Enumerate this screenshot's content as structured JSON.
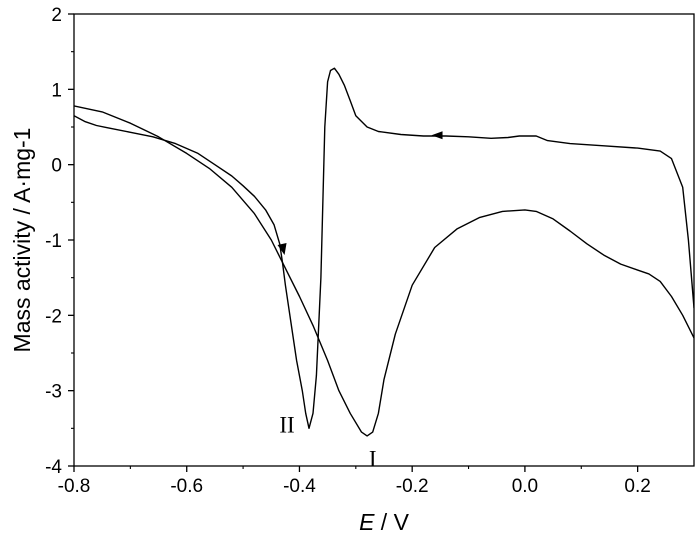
{
  "chart_data": {
    "type": "line",
    "title": "",
    "xlabel_italic": "E",
    "xlabel_unit": " / V",
    "ylabel": "Mass activity / A·mg-1",
    "xlim": [
      -0.8,
      0.3
    ],
    "ylim": [
      -4,
      2
    ],
    "x_ticks": [
      "-0.8",
      "-0.6",
      "-0.4",
      "-0.2",
      "0.0",
      "0.2"
    ],
    "x_tick_values": [
      -0.8,
      -0.6,
      -0.4,
      -0.2,
      0.0,
      0.2
    ],
    "y_ticks": [
      "2",
      "1",
      "0",
      "-1",
      "-2",
      "-3",
      "-4"
    ],
    "y_tick_values": [
      2,
      1,
      0,
      -1,
      -2,
      -3,
      -4
    ],
    "grid": false,
    "line_color": "#000000",
    "annotations": [
      {
        "text": "II",
        "x": -0.422,
        "y": -3.45
      },
      {
        "text": "I",
        "x": -0.27,
        "y": -3.9
      }
    ],
    "series": [
      {
        "points": [
          [
            -0.8,
            0.65
          ],
          [
            -0.78,
            0.57
          ],
          [
            -0.76,
            0.52
          ],
          [
            -0.74,
            0.49
          ],
          [
            -0.7,
            0.43
          ],
          [
            -0.66,
            0.37
          ],
          [
            -0.62,
            0.28
          ],
          [
            -0.58,
            0.15
          ],
          [
            -0.55,
            0.0
          ],
          [
            -0.52,
            -0.15
          ],
          [
            -0.5,
            -0.28
          ],
          [
            -0.48,
            -0.42
          ],
          [
            -0.46,
            -0.6
          ],
          [
            -0.445,
            -0.8
          ],
          [
            -0.435,
            -1.05
          ],
          [
            -0.43,
            -1.3
          ],
          [
            -0.425,
            -1.6
          ],
          [
            -0.415,
            -2.1
          ],
          [
            -0.405,
            -2.6
          ],
          [
            -0.395,
            -3.0
          ],
          [
            -0.389,
            -3.3
          ],
          [
            -0.383,
            -3.5
          ],
          [
            -0.376,
            -3.3
          ],
          [
            -0.37,
            -2.8
          ],
          [
            -0.362,
            -1.5
          ],
          [
            -0.355,
            0.5
          ],
          [
            -0.35,
            1.1
          ],
          [
            -0.345,
            1.25
          ],
          [
            -0.338,
            1.28
          ],
          [
            -0.33,
            1.2
          ],
          [
            -0.32,
            1.05
          ],
          [
            -0.31,
            0.85
          ],
          [
            -0.3,
            0.65
          ],
          [
            -0.28,
            0.5
          ],
          [
            -0.26,
            0.44
          ],
          [
            -0.22,
            0.4
          ],
          [
            -0.18,
            0.38
          ],
          [
            -0.14,
            0.38
          ],
          [
            -0.1,
            0.37
          ],
          [
            -0.06,
            0.35
          ],
          [
            -0.03,
            0.36
          ],
          [
            -0.01,
            0.38
          ],
          [
            0.01,
            0.38
          ],
          [
            0.02,
            0.38
          ],
          [
            0.04,
            0.32
          ],
          [
            0.08,
            0.28
          ],
          [
            0.14,
            0.25
          ],
          [
            0.2,
            0.22
          ],
          [
            0.24,
            0.18
          ],
          [
            0.26,
            0.08
          ],
          [
            0.28,
            -0.3
          ],
          [
            0.29,
            -1.0
          ],
          [
            0.3,
            -1.9
          ]
        ],
        "arrow_at": [
          -0.155,
          0.39
        ],
        "arrow_direction": "left"
      },
      {
        "points": [
          [
            0.3,
            -2.3
          ],
          [
            0.28,
            -2.0
          ],
          [
            0.26,
            -1.75
          ],
          [
            0.24,
            -1.55
          ],
          [
            0.22,
            -1.45
          ],
          [
            0.2,
            -1.4
          ],
          [
            0.17,
            -1.32
          ],
          [
            0.14,
            -1.2
          ],
          [
            0.11,
            -1.05
          ],
          [
            0.08,
            -0.88
          ],
          [
            0.05,
            -0.72
          ],
          [
            0.02,
            -0.62
          ],
          [
            0.0,
            -0.6
          ],
          [
            -0.04,
            -0.62
          ],
          [
            -0.08,
            -0.7
          ],
          [
            -0.12,
            -0.85
          ],
          [
            -0.16,
            -1.1
          ],
          [
            -0.2,
            -1.6
          ],
          [
            -0.23,
            -2.25
          ],
          [
            -0.25,
            -2.85
          ],
          [
            -0.26,
            -3.3
          ],
          [
            -0.27,
            -3.55
          ],
          [
            -0.28,
            -3.6
          ],
          [
            -0.29,
            -3.55
          ],
          [
            -0.31,
            -3.3
          ],
          [
            -0.33,
            -3.0
          ],
          [
            -0.35,
            -2.6
          ],
          [
            -0.375,
            -2.15
          ],
          [
            -0.4,
            -1.75
          ],
          [
            -0.42,
            -1.45
          ],
          [
            -0.45,
            -1.0
          ],
          [
            -0.48,
            -0.65
          ],
          [
            -0.52,
            -0.3
          ],
          [
            -0.56,
            -0.05
          ],
          [
            -0.6,
            0.15
          ],
          [
            -0.65,
            0.37
          ],
          [
            -0.7,
            0.55
          ],
          [
            -0.75,
            0.7
          ],
          [
            -0.8,
            0.78
          ]
        ],
        "arrow_at": [
          -0.43,
          -1.12
        ],
        "arrow_direction": "down"
      }
    ]
  }
}
